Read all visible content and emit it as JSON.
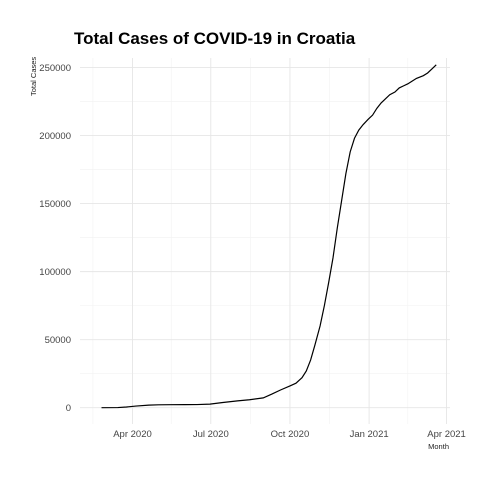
{
  "chart_data": {
    "type": "line",
    "title": "Total Cases of COVID-19 in Croatia",
    "xlabel": "Month",
    "ylabel": "Total Cases",
    "grid": true,
    "xlim": [
      "2020-01-31",
      "2021-04-05"
    ],
    "ylim": [
      -12000,
      257000
    ],
    "x_ticks": [
      {
        "date": "2020-04-01",
        "label": "Apr 2020"
      },
      {
        "date": "2020-07-01",
        "label": "Jul 2020"
      },
      {
        "date": "2020-10-01",
        "label": "Oct 2020"
      },
      {
        "date": "2021-01-01",
        "label": "Jan 2021"
      },
      {
        "date": "2021-04-01",
        "label": "Apr 2021"
      }
    ],
    "x_minor_ticks": [
      "2020-02-15",
      "2020-05-16",
      "2020-08-16",
      "2020-11-16",
      "2021-02-15"
    ],
    "y_ticks": [
      {
        "value": 0,
        "label": "0"
      },
      {
        "value": 50000,
        "label": "50000"
      },
      {
        "value": 100000,
        "label": "100000"
      },
      {
        "value": 150000,
        "label": "150000"
      },
      {
        "value": 200000,
        "label": "200000"
      },
      {
        "value": 250000,
        "label": "250000"
      }
    ],
    "y_minor_ticks": [
      25000,
      75000,
      125000,
      175000,
      225000
    ],
    "series": [
      {
        "x": [
          "2020-02-25",
          "2020-03-15",
          "2020-03-25",
          "2020-04-05",
          "2020-04-20",
          "2020-05-01",
          "2020-05-15",
          "2020-06-01",
          "2020-06-15",
          "2020-06-30",
          "2020-07-15",
          "2020-08-01",
          "2020-08-15",
          "2020-08-31",
          "2020-09-10",
          "2020-09-20",
          "2020-10-01",
          "2020-10-08",
          "2020-10-15",
          "2020-10-20",
          "2020-10-25",
          "2020-10-30",
          "2020-11-05",
          "2020-11-10",
          "2020-11-15",
          "2020-11-20",
          "2020-11-25",
          "2020-11-30",
          "2020-12-05",
          "2020-12-10",
          "2020-12-15",
          "2020-12-20",
          "2020-12-25",
          "2020-12-31",
          "2021-01-05",
          "2021-01-10",
          "2021-01-15",
          "2021-01-20",
          "2021-01-25",
          "2021-01-31",
          "2021-02-05",
          "2021-02-10",
          "2021-02-15",
          "2021-02-20",
          "2021-02-25",
          "2021-03-05",
          "2021-03-10",
          "2021-03-15",
          "2021-03-20"
        ],
        "y": [
          0,
          100,
          500,
          1200,
          1900,
          2100,
          2200,
          2250,
          2300,
          2600,
          3800,
          5000,
          5800,
          7200,
          10000,
          13000,
          16000,
          18000,
          22000,
          27000,
          35000,
          46000,
          60000,
          75000,
          92000,
          110000,
          132000,
          152000,
          172000,
          188000,
          198000,
          204000,
          208000,
          212000,
          215000,
          220000,
          224000,
          227000,
          230000,
          232000,
          235000,
          236500,
          238000,
          240000,
          242000,
          244000,
          246000,
          249000,
          252000
        ]
      }
    ]
  }
}
